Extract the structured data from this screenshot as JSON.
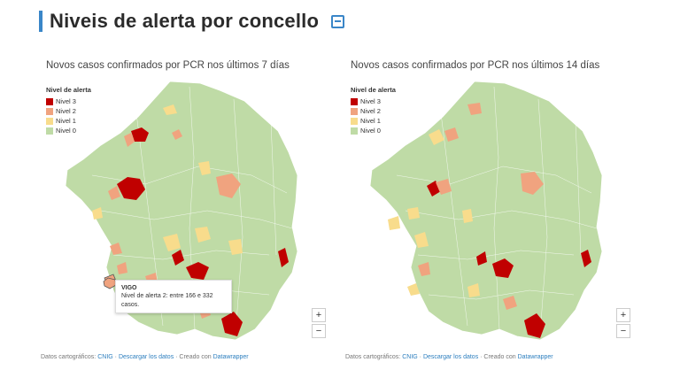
{
  "header": {
    "title": "Niveis de alerta por concello"
  },
  "legend": {
    "title": "Nivel de alerta",
    "items": [
      {
        "label": "Nivel 3",
        "color": "#c00000"
      },
      {
        "label": "Nivel 2",
        "color": "#f0a37f"
      },
      {
        "label": "Nivel 1",
        "color": "#f8dc8c"
      },
      {
        "label": "Nivel 0",
        "color": "#bfdba6"
      }
    ]
  },
  "colors": {
    "nivel0": "#bfdba6",
    "nivel1": "#f8dc8c",
    "nivel2": "#f0a37f",
    "nivel3": "#c00000",
    "accent": "#3a86c8"
  },
  "panels": [
    {
      "subtitle": "Novos casos confirmados por PCR nos últimos 7 días"
    },
    {
      "subtitle": "Novos casos confirmados por PCR nos últimos 14 días"
    }
  ],
  "tooltip": {
    "title": "VIGO",
    "text": "Nivel de alerta 2: entre 166 e 332 casos."
  },
  "zoom": {
    "in": "+",
    "out": "−"
  },
  "footer": {
    "prefix": "Datos cartográficos: ",
    "cnig": "CNIG",
    "sep1": " · ",
    "download": "Descargar los datos",
    "created": " · Creado con ",
    "datawrapper": "Datawrapper"
  }
}
